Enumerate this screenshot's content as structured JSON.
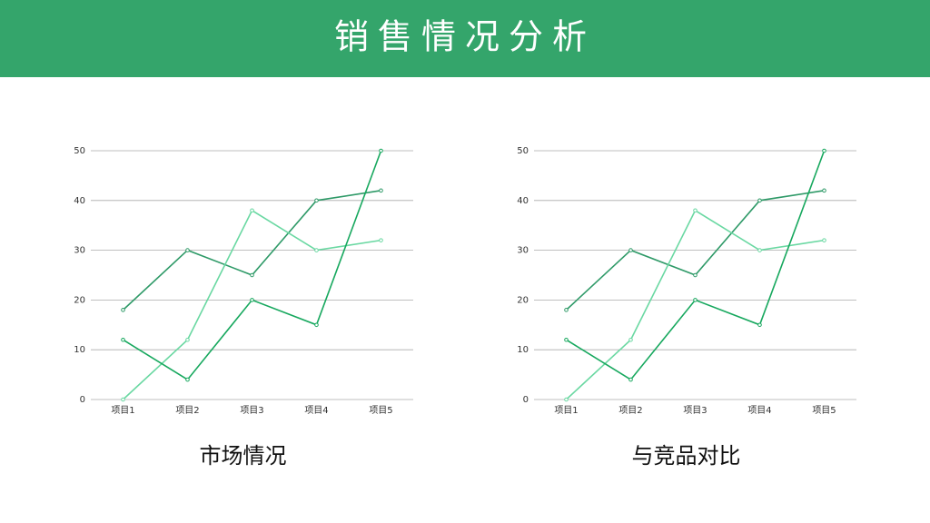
{
  "title": "销售情况分析",
  "chart_data": [
    {
      "type": "line",
      "title": "市场情况",
      "categories": [
        "项目1",
        "项目2",
        "项目3",
        "项目4",
        "项目5"
      ],
      "series": [
        {
          "color": "#2f9a68",
          "values": [
            18,
            30,
            25,
            40,
            42
          ]
        },
        {
          "color": "#6ad8a2",
          "values": [
            0,
            12,
            38,
            30,
            32
          ]
        },
        {
          "color": "#17a85e",
          "values": [
            12,
            4,
            20,
            15,
            50
          ]
        }
      ],
      "ylim": [
        0,
        50
      ],
      "yticks": [
        0,
        10,
        20,
        30,
        40,
        50
      ],
      "grid": true
    },
    {
      "type": "line",
      "title": "与竞品对比",
      "categories": [
        "项目1",
        "项目2",
        "项目3",
        "项目4",
        "项目5"
      ],
      "series": [
        {
          "color": "#2f9a68",
          "values": [
            18,
            30,
            25,
            40,
            42
          ]
        },
        {
          "color": "#6ad8a2",
          "values": [
            0,
            12,
            38,
            30,
            32
          ]
        },
        {
          "color": "#17a85e",
          "values": [
            12,
            4,
            20,
            15,
            50
          ]
        }
      ],
      "ylim": [
        0,
        50
      ],
      "yticks": [
        0,
        10,
        20,
        30,
        40,
        50
      ],
      "grid": true
    }
  ]
}
